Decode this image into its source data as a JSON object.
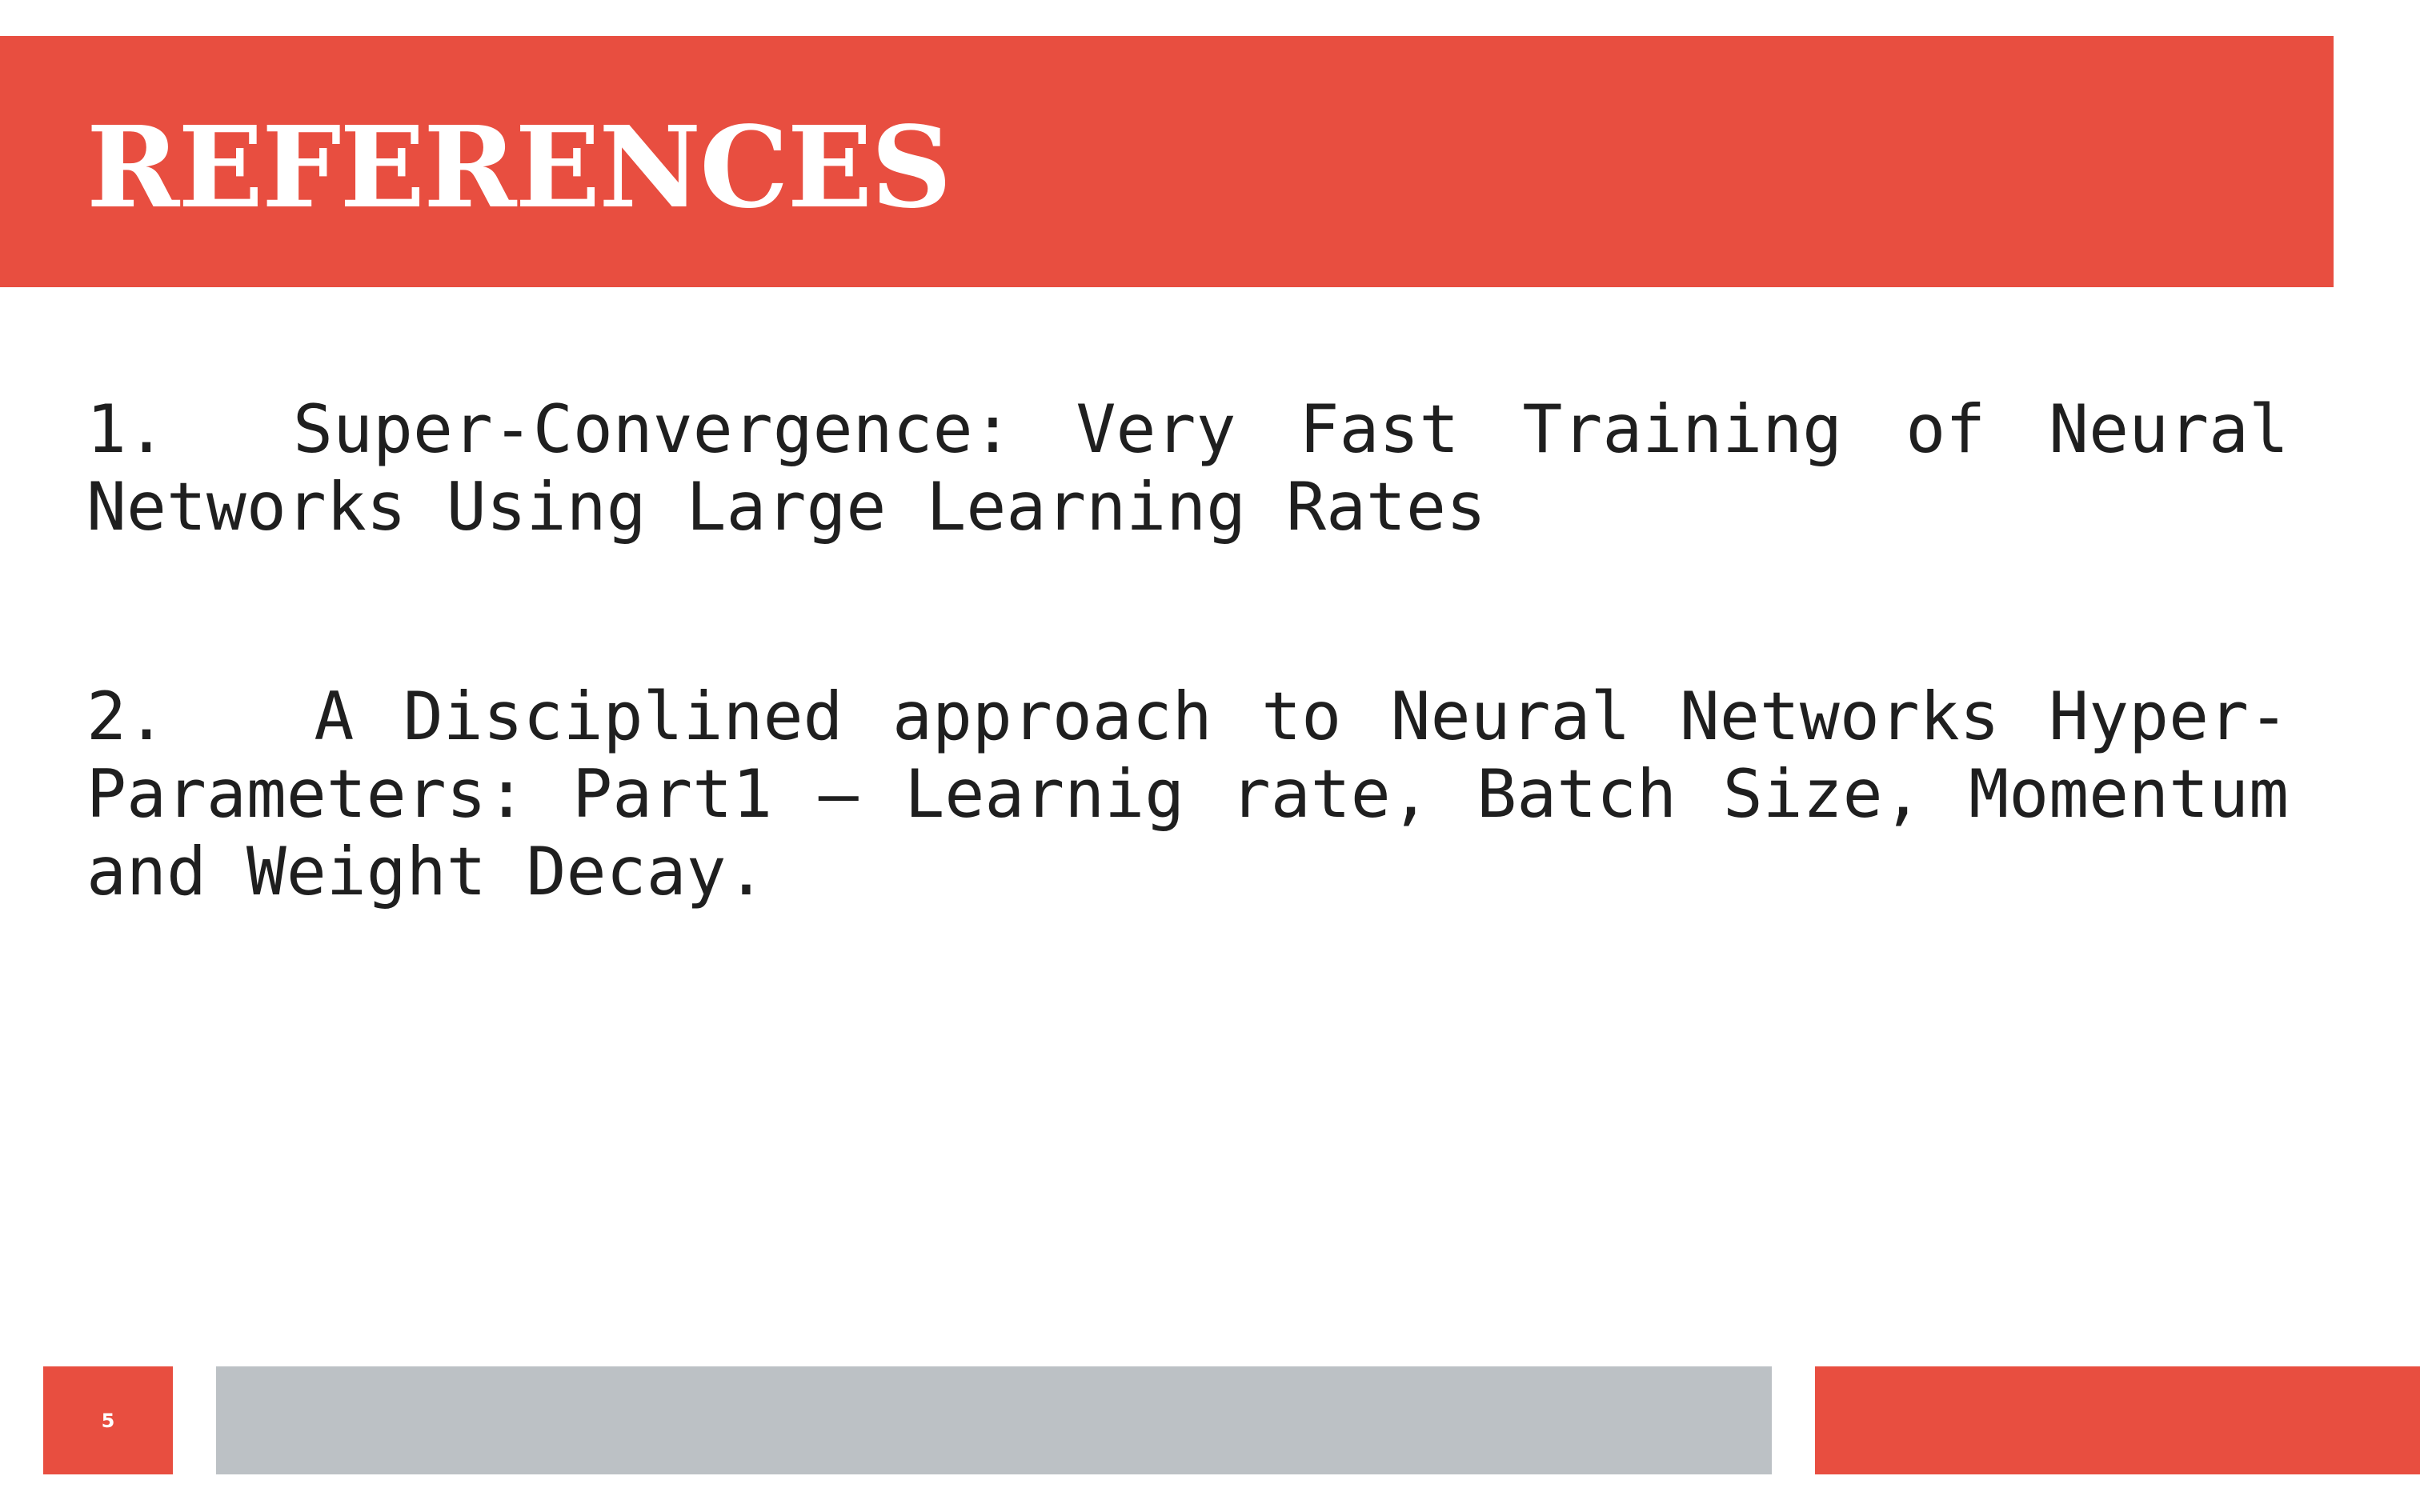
{
  "slide": {
    "title": "REFERENCES",
    "references": [
      {
        "number": "1.",
        "text": "Super-Convergence: Very Fast Training of Neural Networks Using Large Learning Rates"
      },
      {
        "number": "2.",
        "text": "A Disciplined approach to Neural Networks Hyper-Parameters: Part1 – Learnig rate, Batch Size, Momentum and Weight Decay."
      }
    ],
    "page_number": "5"
  },
  "colors": {
    "accent": "#e84e40",
    "footer_gray": "#bcc1c5",
    "text": "#1f1f1f",
    "background": "#ffffff"
  }
}
